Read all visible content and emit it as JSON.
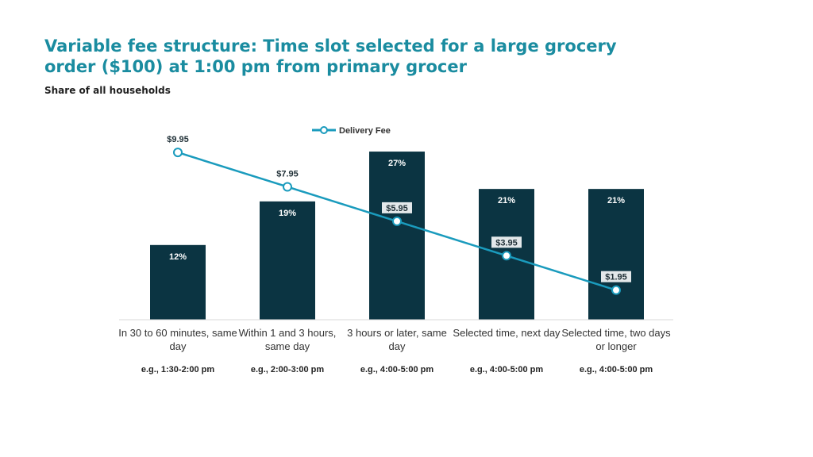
{
  "title": "Variable fee structure: Time slot selected for a large grocery order ($100) at 1:00 pm from primary grocer",
  "subtitle": "Share of all households",
  "colors": {
    "bar": "#0b3442",
    "line": "#1a9bbd",
    "title": "#1a8ca0"
  },
  "chart_data": {
    "type": "bar",
    "categories": [
      "In 30 to 60 minutes, same day",
      "Within 1 and 3 hours, same day",
      "3 hours or later, same day",
      "Selected time, next day",
      "Selected time, two days or longer"
    ],
    "examples": [
      "e.g., 1:30-2:00 pm",
      "e.g., 2:00-3:00 pm",
      "e.g., 4:00-5:00 pm",
      "e.g., 4:00-5:00 pm",
      "e.g., 4:00-5:00 pm"
    ],
    "values": [
      12,
      19,
      27,
      21,
      21
    ],
    "value_labels": [
      "12%",
      "19%",
      "27%",
      "21%",
      "21%"
    ],
    "ylim": [
      0,
      30
    ],
    "line_series": {
      "name": "Delivery Fee",
      "values": [
        9.95,
        7.95,
        5.95,
        3.95,
        1.95
      ],
      "labels": [
        "$9.95",
        "$7.95",
        "$5.95",
        "$3.95",
        "$1.95"
      ],
      "ylim": [
        0,
        12
      ]
    },
    "legend": "top-center",
    "grid": false
  }
}
